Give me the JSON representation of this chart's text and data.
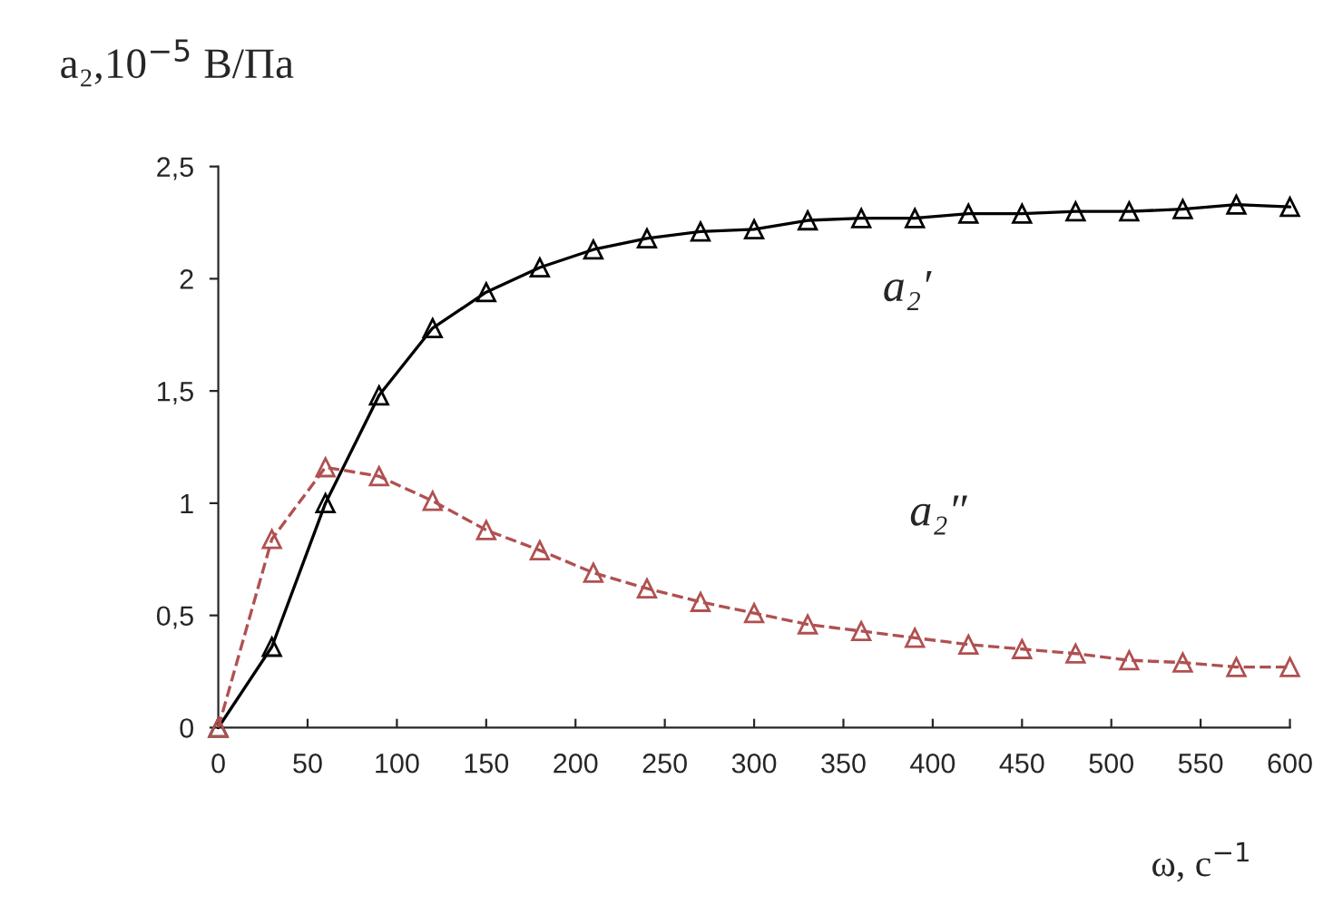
{
  "chart_data": {
    "type": "line",
    "ylabel": "a₂,10$^{−5}$ В/Па",
    "xlabel": "ω, с$^{−1}$",
    "x": [
      0,
      30,
      60,
      90,
      120,
      150,
      180,
      210,
      240,
      270,
      300,
      330,
      360,
      390,
      420,
      450,
      480,
      510,
      540,
      570,
      600
    ],
    "series": [
      {
        "color": "#000000",
        "line_style": "solid",
        "marker": "triangle",
        "values": [
          0,
          0.36,
          1.0,
          1.48,
          1.78,
          1.94,
          2.05,
          2.13,
          2.18,
          2.21,
          2.22,
          2.26,
          2.27,
          2.27,
          2.29,
          2.29,
          2.3,
          2.3,
          2.31,
          2.33,
          2.32
        ]
      },
      {
        "color": "#b05050",
        "line_style": "dashed",
        "marker": "triangle",
        "values": [
          0,
          0.84,
          1.16,
          1.12,
          1.01,
          0.88,
          0.79,
          0.69,
          0.62,
          0.56,
          0.51,
          0.46,
          0.43,
          0.4,
          0.37,
          0.35,
          0.33,
          0.3,
          0.29,
          0.27,
          0.27
        ]
      }
    ],
    "annotations": [
      "a₂′",
      "a₂″"
    ],
    "xlim": [
      0,
      600
    ],
    "xticks": [
      0,
      50,
      100,
      150,
      200,
      250,
      300,
      350,
      400,
      450,
      500,
      550,
      600
    ],
    "ylim": [
      0,
      2.5
    ],
    "yticks": [
      0,
      {
        "value": 0.5,
        "label": "0,5"
      },
      1,
      {
        "value": 1.5,
        "label": "1,5"
      },
      2,
      {
        "value": 2.5,
        "label": "2,5"
      }
    ],
    "grid": false,
    "legend": false
  }
}
